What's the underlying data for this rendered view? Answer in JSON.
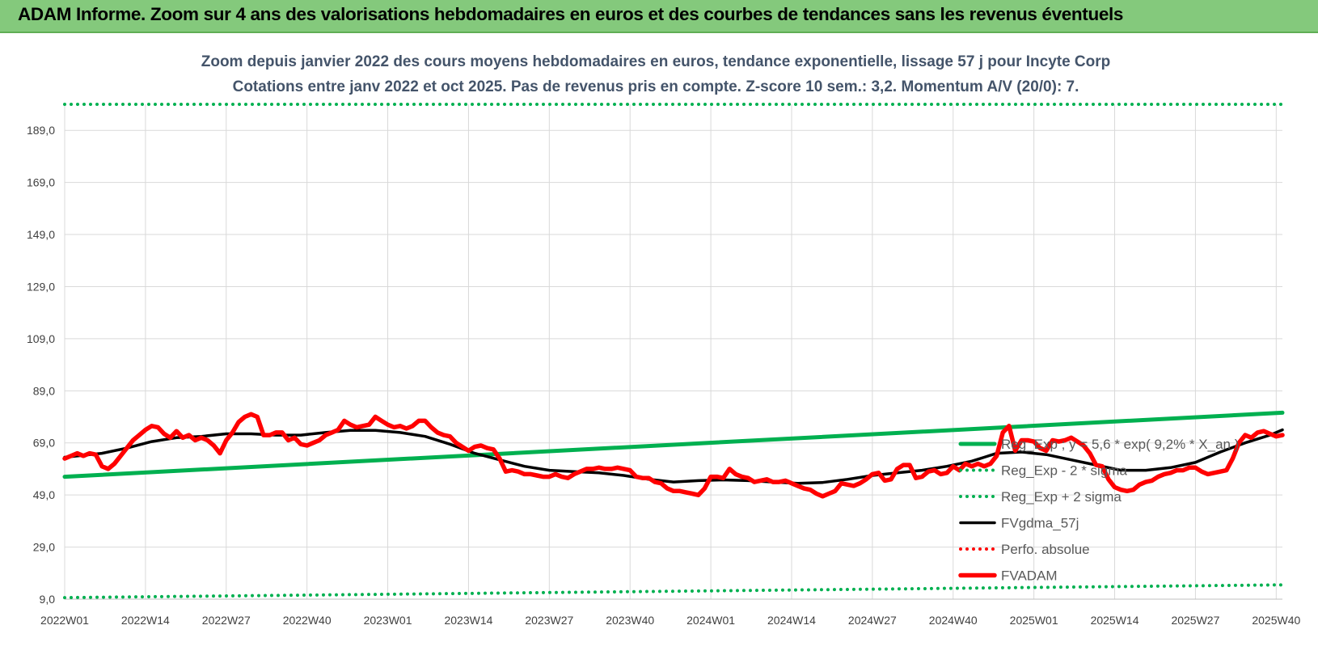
{
  "banner": {
    "title": "ADAM Informe. Zoom sur 4 ans des valorisations hebdomadaires en euros et des courbes de tendances sans les revenus éventuels"
  },
  "chart_data": {
    "type": "line",
    "title": "Zoom depuis janvier 2022 des cours moyens hebdomadaires en euros, tendance exponentielle, lissage 57 j pour Incyte Corp",
    "subtitle": "Cotations entre janv 2022 et oct 2025. Pas de revenus pris en compte. Z-score 10 sem.: 3,2. Momentum A/V (20/0): 7.",
    "xlabel": "",
    "ylabel": "",
    "ylim": [
      9,
      199
    ],
    "yticks": [
      "9,0",
      "29,0",
      "49,0",
      "69,0",
      "89,0",
      "109,0",
      "129,0",
      "149,0",
      "169,0",
      "189,0"
    ],
    "yticks_values": [
      9,
      29,
      49,
      69,
      89,
      109,
      129,
      149,
      169,
      189
    ],
    "x_range_index": [
      0,
      196
    ],
    "xticks": [
      {
        "index": 0,
        "label": "2022W01"
      },
      {
        "index": 13,
        "label": "2022W14"
      },
      {
        "index": 26,
        "label": "2022W27"
      },
      {
        "index": 39,
        "label": "2022W40"
      },
      {
        "index": 52,
        "label": "2023W01"
      },
      {
        "index": 65,
        "label": "2023W14"
      },
      {
        "index": 78,
        "label": "2023W27"
      },
      {
        "index": 91,
        "label": "2023W40"
      },
      {
        "index": 104,
        "label": "2024W01"
      },
      {
        "index": 117,
        "label": "2024W14"
      },
      {
        "index": 130,
        "label": "2024W27"
      },
      {
        "index": 143,
        "label": "2024W40"
      },
      {
        "index": 156,
        "label": "2025W01"
      },
      {
        "index": 169,
        "label": "2025W14"
      },
      {
        "index": 182,
        "label": "2025W27"
      },
      {
        "index": 195,
        "label": "2025W40"
      }
    ],
    "grid": true,
    "legend_position": "right",
    "series": [
      {
        "name": "Reg_Exp ; y = 5,6 * exp( 9,2% * X_an )",
        "style": "solid-thick",
        "color": "#00b050",
        "points": [
          [
            0,
            56.0
          ],
          [
            196,
            80.6
          ]
        ]
      },
      {
        "name": "Reg_Exp - 2 * sigma",
        "style": "dotted",
        "color": "#00b050",
        "points": [
          [
            0,
            9.6
          ],
          [
            196,
            14.5
          ]
        ]
      },
      {
        "name": "Reg_Exp + 2 sigma",
        "style": "dotted",
        "color": "#00b050",
        "points": [
          [
            0,
            199.0
          ],
          [
            196,
            199.0
          ]
        ]
      },
      {
        "name": "FVgdma_57j",
        "style": "solid",
        "color": "#000000",
        "points": [
          [
            0,
            63.5
          ],
          [
            6,
            65
          ],
          [
            10,
            67
          ],
          [
            14,
            69.5
          ],
          [
            18,
            71
          ],
          [
            22,
            71.5
          ],
          [
            26,
            72.5
          ],
          [
            30,
            72.5
          ],
          [
            34,
            72
          ],
          [
            38,
            72
          ],
          [
            42,
            73
          ],
          [
            46,
            73.8
          ],
          [
            50,
            73.8
          ],
          [
            54,
            73
          ],
          [
            58,
            71.5
          ],
          [
            62,
            68.5
          ],
          [
            66,
            65
          ],
          [
            70,
            62.5
          ],
          [
            74,
            60
          ],
          [
            78,
            58.5
          ],
          [
            82,
            58
          ],
          [
            86,
            57.5
          ],
          [
            90,
            56.5
          ],
          [
            94,
            55
          ],
          [
            98,
            54
          ],
          [
            102,
            54.5
          ],
          [
            106,
            54.8
          ],
          [
            110,
            54.5
          ],
          [
            114,
            54
          ],
          [
            118,
            53.5
          ],
          [
            122,
            53.8
          ],
          [
            126,
            55
          ],
          [
            130,
            56.5
          ],
          [
            134,
            57.5
          ],
          [
            138,
            58.5
          ],
          [
            142,
            60
          ],
          [
            146,
            62
          ],
          [
            148,
            63.5
          ],
          [
            150,
            65
          ],
          [
            154,
            65.5
          ],
          [
            158,
            64.5
          ],
          [
            162,
            62.5
          ],
          [
            166,
            60.5
          ],
          [
            170,
            58.5
          ],
          [
            174,
            58.5
          ],
          [
            178,
            59.5
          ],
          [
            182,
            61.5
          ],
          [
            186,
            65.5
          ],
          [
            190,
            69
          ],
          [
            194,
            72
          ],
          [
            196,
            74
          ]
        ]
      },
      {
        "name": "Perfo. absolue",
        "style": "dotted",
        "color": "#ff0000",
        "points": []
      },
      {
        "name": "FVADAM",
        "style": "solid-thick",
        "color": "#ff0000",
        "points": [
          [
            0,
            63
          ],
          [
            2,
            65
          ],
          [
            3,
            64
          ],
          [
            4,
            65
          ],
          [
            5,
            64.5
          ],
          [
            6,
            60
          ],
          [
            7,
            59
          ],
          [
            8,
            61
          ],
          [
            9,
            64
          ],
          [
            10,
            67
          ],
          [
            11,
            70
          ],
          [
            12,
            72
          ],
          [
            13,
            74
          ],
          [
            14,
            75.5
          ],
          [
            15,
            75
          ],
          [
            16,
            72.5
          ],
          [
            17,
            71
          ],
          [
            18,
            73.5
          ],
          [
            19,
            71
          ],
          [
            20,
            72
          ],
          [
            21,
            70
          ],
          [
            22,
            71
          ],
          [
            23,
            70
          ],
          [
            24,
            68
          ],
          [
            25,
            65
          ],
          [
            26,
            70
          ],
          [
            27,
            73
          ],
          [
            28,
            77
          ],
          [
            29,
            79
          ],
          [
            30,
            80
          ],
          [
            31,
            79
          ],
          [
            32,
            72
          ],
          [
            33,
            72
          ],
          [
            34,
            73
          ],
          [
            35,
            73
          ],
          [
            36,
            70
          ],
          [
            37,
            71
          ],
          [
            38,
            68.5
          ],
          [
            39,
            68
          ],
          [
            40,
            69
          ],
          [
            41,
            70
          ],
          [
            42,
            72
          ],
          [
            43,
            73
          ],
          [
            44,
            74
          ],
          [
            45,
            77.5
          ],
          [
            46,
            76
          ],
          [
            47,
            75
          ],
          [
            48,
            75.5
          ],
          [
            49,
            76
          ],
          [
            50,
            79
          ],
          [
            51,
            77.5
          ],
          [
            52,
            76
          ],
          [
            53,
            75
          ],
          [
            54,
            75.5
          ],
          [
            55,
            74.5
          ],
          [
            56,
            75.5
          ],
          [
            57,
            77.5
          ],
          [
            58,
            77.5
          ],
          [
            59,
            75
          ],
          [
            60,
            73
          ],
          [
            61,
            72
          ],
          [
            62,
            71.5
          ],
          [
            63,
            69
          ],
          [
            64,
            67.5
          ],
          [
            65,
            66
          ],
          [
            66,
            67.5
          ],
          [
            67,
            68
          ],
          [
            68,
            67
          ],
          [
            69,
            66.5
          ],
          [
            70,
            63
          ],
          [
            71,
            58
          ],
          [
            72,
            58.5
          ],
          [
            73,
            58
          ],
          [
            74,
            57
          ],
          [
            75,
            57
          ],
          [
            76,
            56.5
          ],
          [
            77,
            56
          ],
          [
            78,
            56
          ],
          [
            79,
            57
          ],
          [
            80,
            56
          ],
          [
            81,
            55.5
          ],
          [
            82,
            57
          ],
          [
            83,
            58
          ],
          [
            84,
            59
          ],
          [
            85,
            59
          ],
          [
            86,
            59.5
          ],
          [
            87,
            59
          ],
          [
            88,
            59
          ],
          [
            89,
            59.5
          ],
          [
            90,
            59
          ],
          [
            91,
            58.5
          ],
          [
            92,
            56
          ],
          [
            93,
            55.5
          ],
          [
            94,
            55.5
          ],
          [
            95,
            54
          ],
          [
            96,
            53.5
          ],
          [
            97,
            51.5
          ],
          [
            98,
            50.5
          ],
          [
            99,
            50.5
          ],
          [
            100,
            50
          ],
          [
            101,
            49.5
          ],
          [
            102,
            49
          ],
          [
            103,
            51.5
          ],
          [
            104,
            56
          ],
          [
            105,
            56
          ],
          [
            106,
            55.5
          ],
          [
            107,
            59
          ],
          [
            108,
            57
          ],
          [
            109,
            56
          ],
          [
            110,
            55.5
          ],
          [
            111,
            54
          ],
          [
            112,
            54.5
          ],
          [
            113,
            55
          ],
          [
            114,
            54
          ],
          [
            115,
            54
          ],
          [
            116,
            54.5
          ],
          [
            117,
            53.5
          ],
          [
            118,
            52.5
          ],
          [
            119,
            51.5
          ],
          [
            120,
            51
          ],
          [
            121,
            49.5
          ],
          [
            122,
            48.5
          ],
          [
            123,
            49.5
          ],
          [
            124,
            50.5
          ],
          [
            125,
            53.5
          ],
          [
            126,
            53
          ],
          [
            127,
            52.5
          ],
          [
            128,
            53.5
          ],
          [
            129,
            55
          ],
          [
            130,
            57
          ],
          [
            131,
            57.5
          ],
          [
            132,
            54.5
          ],
          [
            133,
            55
          ],
          [
            134,
            59
          ],
          [
            135,
            60.5
          ],
          [
            136,
            60.5
          ],
          [
            137,
            55.5
          ],
          [
            138,
            56
          ],
          [
            139,
            58
          ],
          [
            140,
            58.5
          ],
          [
            141,
            57
          ],
          [
            142,
            57.5
          ],
          [
            143,
            60
          ],
          [
            144,
            58.5
          ],
          [
            145,
            61
          ],
          [
            146,
            60
          ],
          [
            147,
            61
          ],
          [
            148,
            60
          ],
          [
            149,
            61
          ],
          [
            150,
            64
          ],
          [
            151,
            73
          ],
          [
            152,
            75.5
          ],
          [
            153,
            66
          ],
          [
            154,
            70
          ],
          [
            155,
            70
          ],
          [
            156,
            69.5
          ],
          [
            157,
            67
          ],
          [
            158,
            66
          ],
          [
            159,
            70
          ],
          [
            160,
            69.5
          ],
          [
            161,
            70
          ],
          [
            162,
            71
          ],
          [
            163,
            69.5
          ],
          [
            164,
            68
          ],
          [
            165,
            65
          ],
          [
            166,
            60.5
          ],
          [
            167,
            60
          ],
          [
            168,
            55
          ],
          [
            169,
            52
          ],
          [
            170,
            51
          ],
          [
            171,
            50.5
          ],
          [
            172,
            51
          ],
          [
            173,
            53
          ],
          [
            174,
            54
          ],
          [
            175,
            54.5
          ],
          [
            176,
            56
          ],
          [
            177,
            57
          ],
          [
            178,
            57.5
          ],
          [
            179,
            58.5
          ],
          [
            180,
            58.5
          ],
          [
            181,
            59.5
          ],
          [
            182,
            59.5
          ],
          [
            183,
            58
          ],
          [
            184,
            57
          ],
          [
            185,
            57.5
          ],
          [
            186,
            58
          ],
          [
            187,
            58.5
          ],
          [
            188,
            63
          ],
          [
            189,
            69
          ],
          [
            190,
            72
          ],
          [
            191,
            71
          ],
          [
            192,
            73
          ],
          [
            193,
            73.5
          ],
          [
            194,
            72.5
          ],
          [
            195,
            71.5
          ],
          [
            196,
            72
          ]
        ]
      }
    ]
  }
}
